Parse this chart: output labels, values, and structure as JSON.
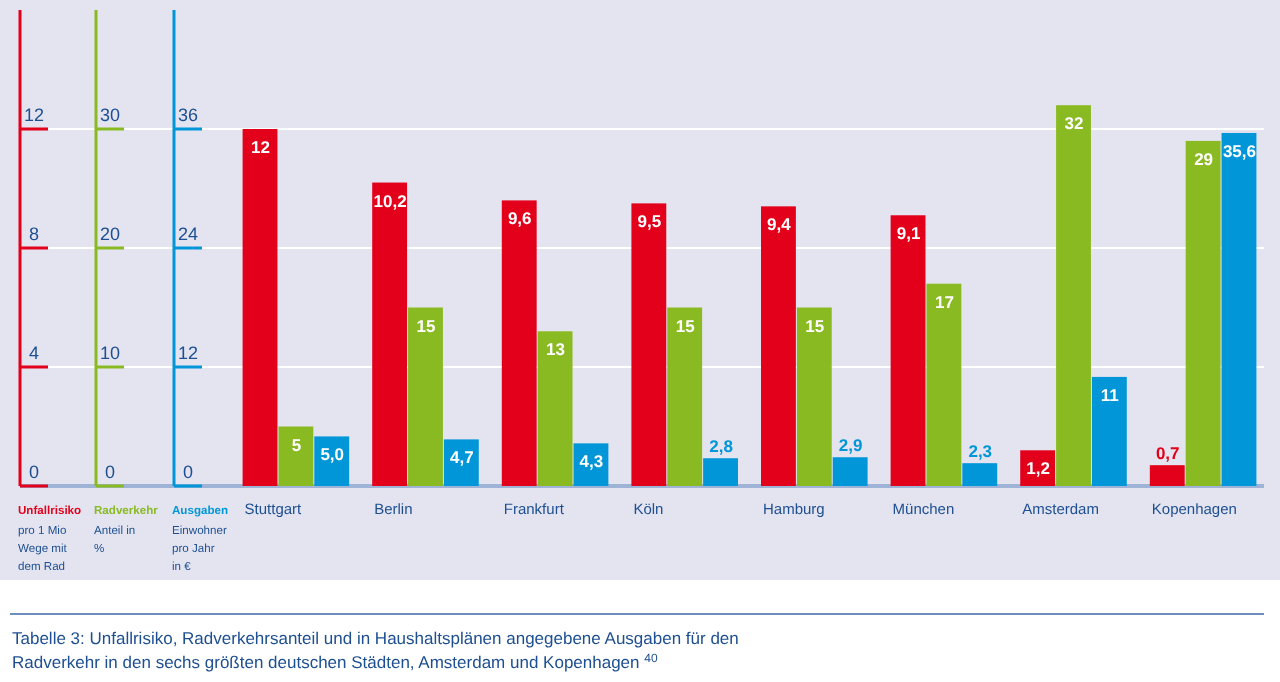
{
  "chart_data": {
    "type": "bar",
    "categories": [
      "Stuttgart",
      "Berlin",
      "Frankfurt",
      "Köln",
      "Hamburg",
      "München",
      "Amsterdam",
      "Kopenhagen"
    ],
    "series": [
      {
        "name": "Unfallrisiko",
        "color": "#e2001a",
        "values": [
          12,
          10.2,
          9.6,
          9.5,
          9.4,
          9.1,
          1.2,
          0.7
        ],
        "value_labels": [
          "12",
          "10,2",
          "9,6",
          "9,5",
          "9,4",
          "9,1",
          "1,2",
          "0,7"
        ]
      },
      {
        "name": "Radverkehr",
        "color": "#8aba22",
        "axis": "y2",
        "values": [
          5,
          15,
          13,
          15,
          15,
          17,
          32,
          29
        ],
        "value_labels": [
          "5",
          "15",
          "13",
          "15",
          "15",
          "17",
          "32",
          "29"
        ]
      },
      {
        "name": "Ausgaben",
        "color": "#0096d8",
        "axis": "y3",
        "values": [
          5.0,
          4.7,
          4.3,
          2.8,
          2.9,
          2.3,
          11,
          35.6
        ],
        "value_labels": [
          "5,0",
          "4,7",
          "4,3",
          "2,8",
          "2,9",
          "2,3",
          "11",
          "35,6"
        ]
      }
    ],
    "ylabel": "pro 1 Mio Wege mit dem Rad",
    "y2label": "Anteil in %",
    "y3label": "Einwohner pro Jahr in €",
    "ylim": [
      0,
      16
    ],
    "yticks": [
      0,
      4,
      8,
      12
    ],
    "y2lim": [
      0,
      40
    ],
    "y2ticks": [
      0,
      10,
      20,
      30
    ],
    "y3lim": [
      0,
      48
    ],
    "y3ticks": [
      0,
      12,
      24,
      36
    ],
    "grid": "y",
    "annotations": [
      "Tabelle 3: Unfallrisiko, Radverkehrsanteil und in Haushaltsplänen angegebene Ausgaben für den Radverkehr in den sechs größten deutschen Städten, Amsterdam und Kopenhagen $^{40}$"
    ]
  }
}
